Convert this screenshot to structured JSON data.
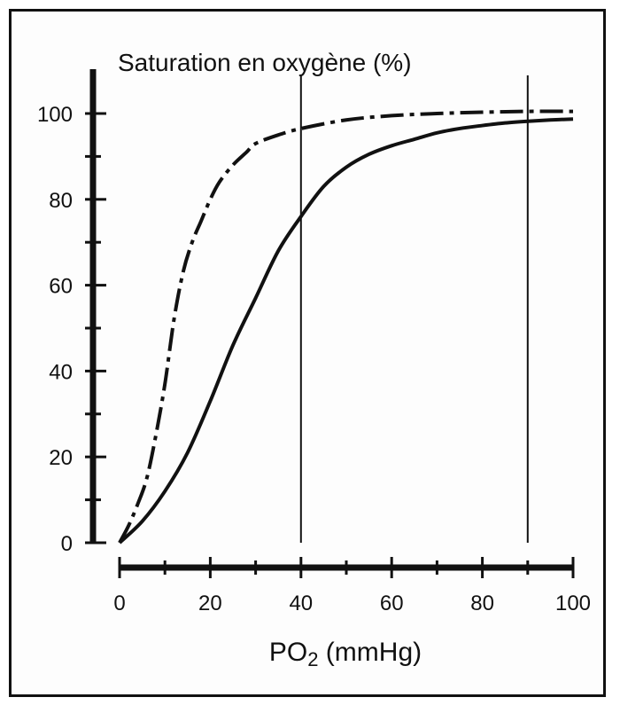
{
  "chart_data": {
    "type": "line",
    "ylabel": "Saturation en oxygène (%)",
    "xlabel_main": "PO",
    "xlabel_sub": "2",
    "xlabel_unit": " (mmHg)",
    "xlim": [
      0,
      100
    ],
    "ylim": [
      0,
      100
    ],
    "x_ticks": [
      "0",
      "20",
      "40",
      "60",
      "80",
      "100"
    ],
    "y_ticks": [
      "0",
      "20",
      "40",
      "60",
      "80",
      "100"
    ],
    "vertical_lines": [
      40,
      90
    ],
    "grid": false,
    "legend": "none",
    "series": [
      {
        "style": "dash-dot",
        "points": [
          [
            0,
            0
          ],
          [
            2,
            4
          ],
          [
            4,
            9
          ],
          [
            6,
            15
          ],
          [
            8,
            25
          ],
          [
            10,
            37
          ],
          [
            12,
            52
          ],
          [
            14,
            63
          ],
          [
            16,
            70
          ],
          [
            18,
            75
          ],
          [
            20,
            80
          ],
          [
            22,
            84
          ],
          [
            25,
            88
          ],
          [
            28,
            91
          ],
          [
            30,
            93
          ],
          [
            35,
            95
          ],
          [
            40,
            96.5
          ],
          [
            50,
            98.5
          ],
          [
            60,
            99.5
          ],
          [
            70,
            100
          ],
          [
            80,
            100.3
          ],
          [
            90,
            100.5
          ],
          [
            100,
            100.5
          ]
        ]
      },
      {
        "style": "solid",
        "points": [
          [
            0,
            0
          ],
          [
            5,
            5
          ],
          [
            10,
            12
          ],
          [
            15,
            21
          ],
          [
            20,
            33
          ],
          [
            25,
            46
          ],
          [
            30,
            57
          ],
          [
            35,
            68
          ],
          [
            40,
            76
          ],
          [
            45,
            83
          ],
          [
            50,
            87.5
          ],
          [
            55,
            90.5
          ],
          [
            60,
            92.5
          ],
          [
            65,
            94
          ],
          [
            70,
            95.5
          ],
          [
            75,
            96.5
          ],
          [
            80,
            97.2
          ],
          [
            85,
            97.8
          ],
          [
            90,
            98.2
          ],
          [
            95,
            98.5
          ],
          [
            100,
            98.7
          ]
        ]
      }
    ]
  }
}
